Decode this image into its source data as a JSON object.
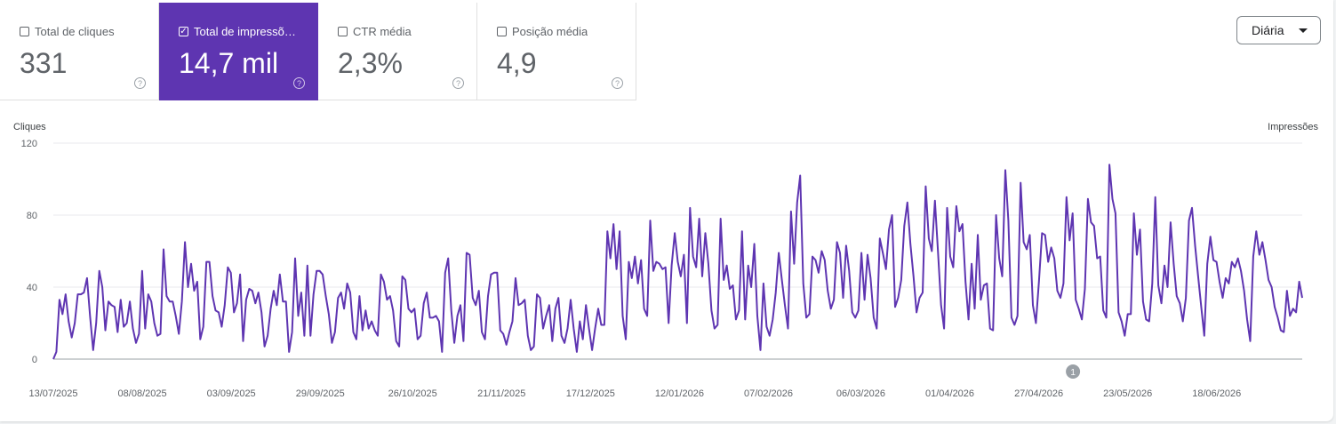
{
  "metrics": [
    {
      "label": "Total de cliques",
      "value": "331",
      "checked": false,
      "help": "?"
    },
    {
      "label": "Total de impressõ…",
      "value": "14,7 mil",
      "checked": true,
      "help": "?"
    },
    {
      "label": "CTR média",
      "value": "2,3%",
      "checked": false,
      "help": "?"
    },
    {
      "label": "Posição média",
      "value": "4,9",
      "checked": false,
      "help": "?"
    }
  ],
  "granularity": {
    "label": "Diária"
  },
  "chart_data": {
    "type": "line",
    "left_axis_label": "Cliques",
    "right_axis_label": "Impressões",
    "y_ticks": [
      "120",
      "80",
      "40",
      "0"
    ],
    "ylim": [
      0,
      120
    ],
    "x_tick_labels": [
      "13/07/2025",
      "08/08/2025",
      "03/09/2025",
      "29/09/2025",
      "26/10/2025",
      "21/11/2025",
      "17/12/2025",
      "12/01/2026",
      "07/02/2026",
      "06/03/2026",
      "01/04/2026",
      "27/04/2026",
      "23/05/2026",
      "18/06/2026"
    ],
    "x_range": [
      "13/07/2025",
      "13/07/2026"
    ],
    "annotation": {
      "label": "1",
      "date": "07/05/2026"
    },
    "series": [
      {
        "color": "#5e35b1",
        "values": [
          0,
          4,
          33,
          25,
          36,
          21,
          12,
          20,
          36,
          36,
          37,
          45,
          24,
          5,
          20,
          49,
          40,
          16,
          32,
          30,
          29,
          15,
          33,
          18,
          20,
          32,
          17,
          9,
          14,
          49,
          17,
          36,
          32,
          20,
          13,
          14,
          61,
          35,
          32,
          32,
          24,
          14,
          32,
          65,
          40,
          53,
          38,
          43,
          11,
          18,
          54,
          54,
          35,
          27,
          26,
          18,
          30,
          51,
          48,
          26,
          31,
          47,
          10,
          33,
          39,
          38,
          31,
          37,
          26,
          7,
          13,
          28,
          38,
          30,
          47,
          32,
          32,
          4,
          15,
          56,
          24,
          37,
          13,
          52,
          13,
          36,
          49,
          49,
          47,
          35,
          25,
          9,
          15,
          34,
          37,
          28,
          42,
          37,
          15,
          11,
          35,
          16,
          27,
          17,
          21,
          16,
          13,
          47,
          43,
          33,
          35,
          27,
          10,
          7,
          46,
          44,
          28,
          26,
          28,
          11,
          13,
          31,
          37,
          23,
          23,
          24,
          21,
          4,
          48,
          56,
          27,
          9,
          24,
          30,
          10,
          59,
          58,
          34,
          30,
          38,
          15,
          11,
          35,
          47,
          48,
          48,
          16,
          14,
          8,
          15,
          21,
          45,
          30,
          31,
          33,
          13,
          5,
          7,
          36,
          34,
          17,
          24,
          30,
          10,
          28,
          34,
          13,
          9,
          17,
          33,
          17,
          4,
          21,
          11,
          30,
          17,
          5,
          17,
          28,
          19,
          19,
          71,
          56,
          75,
          50,
          71,
          24,
          11,
          54,
          45,
          57,
          42,
          55,
          28,
          24,
          77,
          49,
          54,
          53,
          50,
          51,
          20,
          52,
          70,
          54,
          46,
          58,
          20,
          84,
          57,
          51,
          78,
          46,
          70,
          53,
          27,
          17,
          19,
          78,
          44,
          52,
          39,
          41,
          22,
          27,
          71,
          22,
          52,
          40,
          64,
          24,
          5,
          42,
          18,
          13,
          22,
          37,
          59,
          44,
          30,
          17,
          82,
          53,
          87,
          102,
          42,
          23,
          25,
          57,
          55,
          48,
          60,
          55,
          38,
          28,
          33,
          65,
          59,
          34,
          63,
          49,
          26,
          23,
          27,
          59,
          33,
          58,
          45,
          23,
          17,
          67,
          59,
          50,
          72,
          80,
          29,
          34,
          44,
          74,
          87,
          64,
          46,
          26,
          34,
          37,
          96,
          67,
          60,
          88,
          60,
          30,
          17,
          84,
          57,
          51,
          85,
          71,
          75,
          43,
          22,
          53,
          28,
          69,
          33,
          41,
          42,
          17,
          16,
          80,
          56,
          46,
          105,
          77,
          23,
          19,
          24,
          98,
          65,
          61,
          69,
          30,
          20,
          43,
          70,
          69,
          54,
          62,
          56,
          38,
          34,
          42,
          90,
          66,
          81,
          33,
          28,
          22,
          39,
          89,
          76,
          74,
          56,
          57,
          27,
          23,
          108,
          89,
          81,
          26,
          21,
          13,
          25,
          25,
          81,
          58,
          72,
          32,
          22,
          21,
          42,
          90,
          41,
          31,
          52,
          40,
          76,
          53,
          35,
          31,
          21,
          34,
          77,
          84,
          63,
          46,
          29,
          13,
          53,
          68,
          55,
          54,
          43,
          34,
          45,
          42,
          54,
          51,
          56,
          49,
          38,
          22,
          10,
          57,
          71,
          58,
          65,
          55,
          44,
          40,
          29,
          23,
          16,
          15,
          38,
          24,
          28,
          26,
          43,
          34
        ]
      }
    ]
  }
}
